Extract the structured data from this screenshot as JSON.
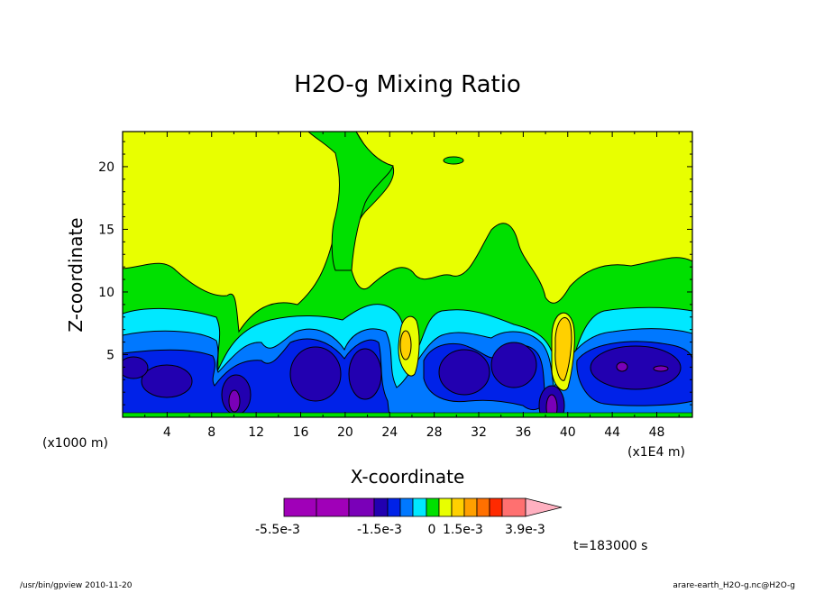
{
  "chart_data": {
    "type": "heatmap",
    "title": "H2O-g Mixing Ratio",
    "xlabel": "X-coordinate",
    "ylabel": "Z-coordinate",
    "x_unit_left": "(x1000 m)",
    "x_unit_right": "(x1E4 m)",
    "xlim": [
      0,
      51.2
    ],
    "ylim": [
      0,
      22.8
    ],
    "x_ticks": [
      4,
      8,
      12,
      16,
      20,
      24,
      28,
      32,
      36,
      40,
      44,
      48
    ],
    "y_ticks": [
      5,
      10,
      15,
      20
    ],
    "colorbar": {
      "colors": [
        "#a000b8",
        "#a000b8",
        "#7a00b8",
        "#2200b0",
        "#0022e8",
        "#0078ff",
        "#00e8ff",
        "#00e000",
        "#e8ff00",
        "#ffd000",
        "#ffa000",
        "#ff7000",
        "#ff2a00",
        "#ff7070",
        "#ffb0c0"
      ],
      "labels": [
        "-5.5e-3",
        "-1.5e-3",
        "0",
        "1.5e-3",
        "3.9e-3"
      ]
    },
    "time_label": "t=183000 s"
  },
  "footer": {
    "left": "/usr/bin/gpview   2010-11-20",
    "right": "arare-earth_H2O-g.nc@H2O-g"
  }
}
